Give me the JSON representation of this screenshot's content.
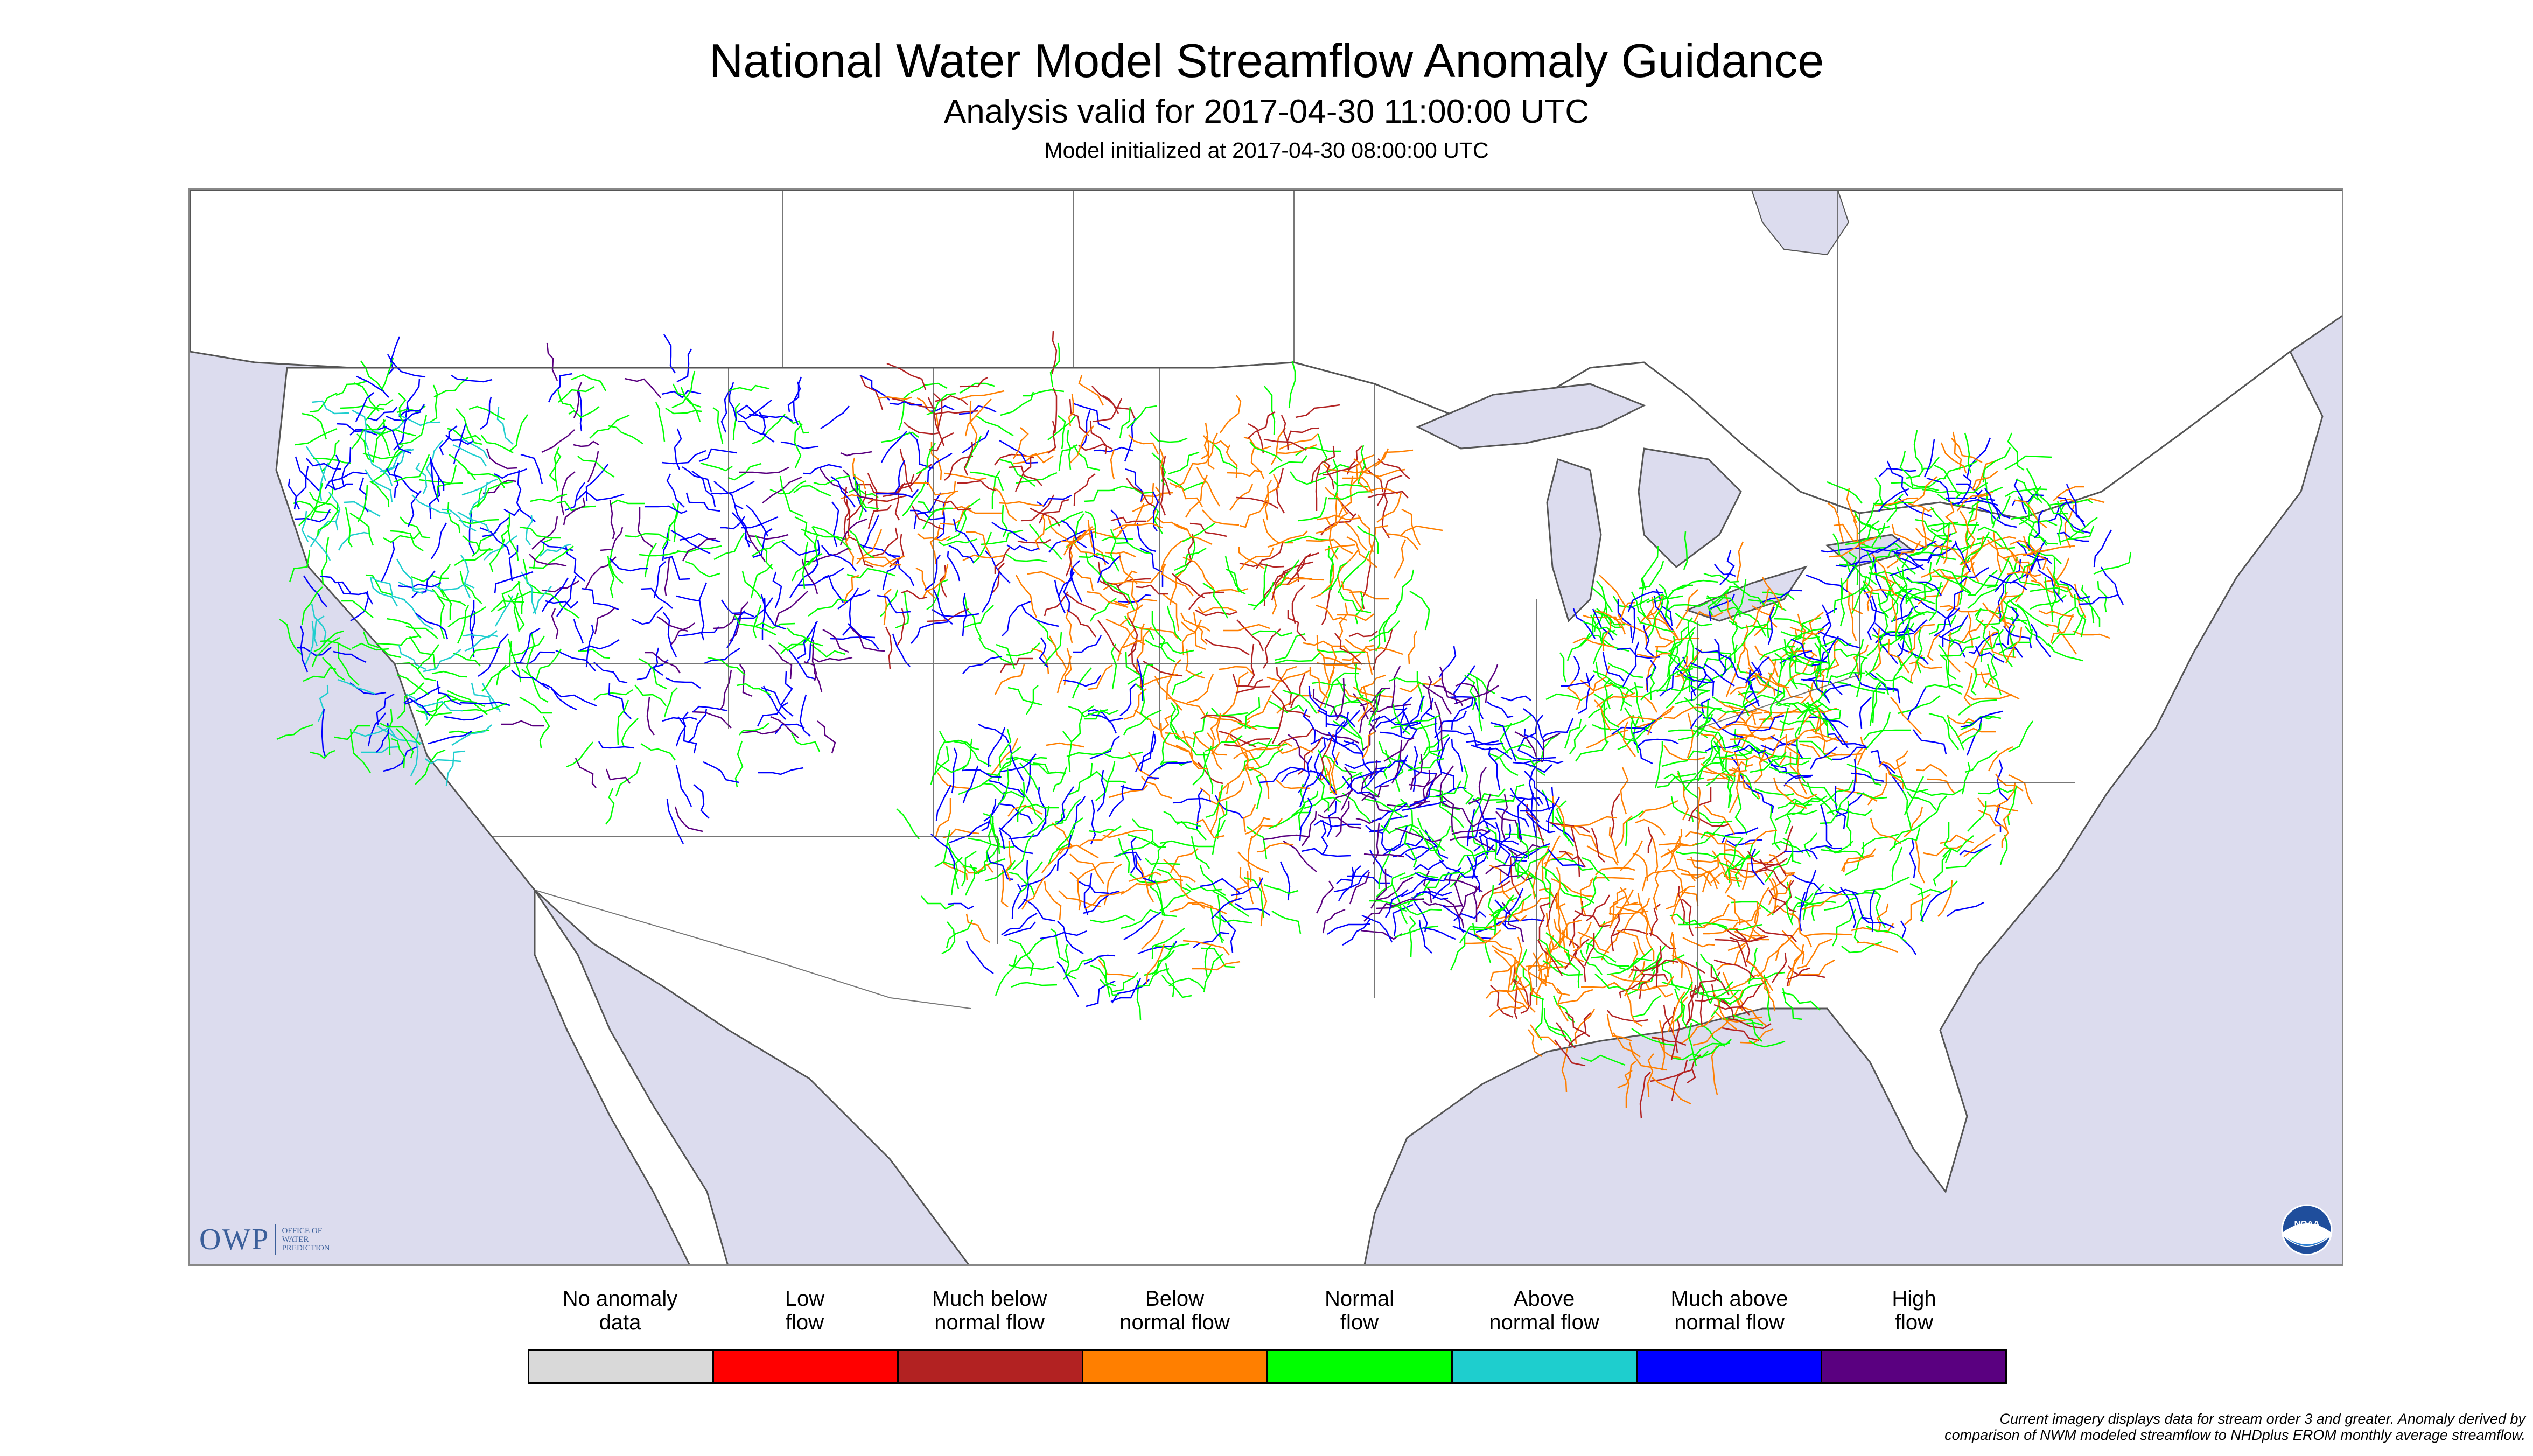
{
  "header": {
    "title": "National Water Model Streamflow Anomaly Guidance",
    "subtitle": "Analysis valid for 2017-04-30 11:00:00 UTC",
    "init_line": "Model initialized at 2017-04-30 08:00:00 UTC"
  },
  "map": {
    "water_color": "#dcdcee",
    "land_color": "#ffffff",
    "border_color": "#555555"
  },
  "logos": {
    "owp_mark": "OWP",
    "owp_text": [
      "OFFICE OF",
      "WATER",
      "PREDICTION"
    ],
    "noaa_text": "NOAA"
  },
  "legend": {
    "items": [
      {
        "label_line1": "No anomaly",
        "label_line2": "data",
        "color": "#d9d9d9"
      },
      {
        "label_line1": "Low",
        "label_line2": "flow",
        "color": "#ff0000"
      },
      {
        "label_line1": "Much below",
        "label_line2": "normal flow",
        "color": "#b22222"
      },
      {
        "label_line1": "Below",
        "label_line2": "normal flow",
        "color": "#ff7f00"
      },
      {
        "label_line1": "Normal",
        "label_line2": "flow",
        "color": "#00ff00"
      },
      {
        "label_line1": "Above",
        "label_line2": "normal flow",
        "color": "#1ecece"
      },
      {
        "label_line1": "Much above",
        "label_line2": "normal flow",
        "color": "#0000ff"
      },
      {
        "label_line1": "High",
        "label_line2": "flow",
        "color": "#5a0080"
      }
    ]
  },
  "footnote": {
    "line1": "Current imagery displays data for stream order 3 and greater. Anomaly derived by",
    "line2": "comparison of NWM modeled streamflow to NHDplus EROM monthly average streamflow."
  }
}
